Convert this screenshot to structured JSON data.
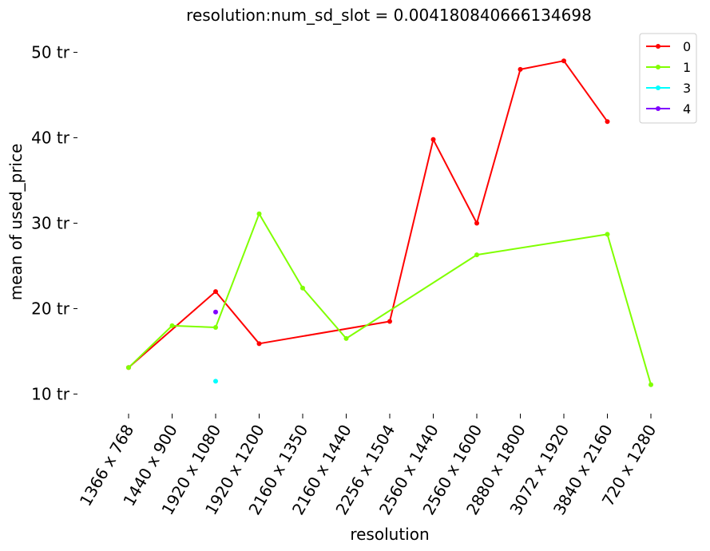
{
  "chart_data": {
    "type": "line",
    "title": "resolution:num_sd_slot = 0.004180840666134698",
    "xlabel": "resolution",
    "ylabel": "mean of used_price",
    "categories": [
      "1366 x 768",
      "1440 x 900",
      "1920 x 1080",
      "1920 x 1200",
      "2160 x 1350",
      "2160 x 1440",
      "2256 x 1504",
      "2560 x 1440",
      "2560 x 1600",
      "2880 x 1800",
      "3072 x 1920",
      "3840 x 2160",
      "720 x 1280"
    ],
    "yticks": [
      10,
      20,
      30,
      40,
      50
    ],
    "ytick_labels": [
      "10 tr",
      "20 tr",
      "30 tr",
      "40 tr",
      "50 tr"
    ],
    "ylim": [
      7.8,
      52.2
    ],
    "grid": false,
    "legend_position": "top-right",
    "series": [
      {
        "name": "0",
        "color": "#ff0000",
        "values": [
          13.1,
          null,
          22.0,
          15.9,
          null,
          null,
          18.5,
          39.8,
          30.0,
          48.0,
          49.0,
          41.9,
          null
        ]
      },
      {
        "name": "1",
        "color": "#80ff00",
        "values": [
          13.1,
          18.0,
          17.8,
          31.1,
          22.4,
          16.5,
          null,
          null,
          26.3,
          null,
          null,
          28.7,
          11.1
        ]
      },
      {
        "name": "3",
        "color": "#00ffff",
        "values": [
          null,
          null,
          11.5,
          null,
          null,
          null,
          null,
          null,
          null,
          null,
          null,
          null,
          null
        ]
      },
      {
        "name": "4",
        "color": "#8000ff",
        "values": [
          null,
          null,
          19.6,
          null,
          null,
          null,
          null,
          null,
          null,
          null,
          null,
          null,
          null
        ]
      }
    ]
  }
}
